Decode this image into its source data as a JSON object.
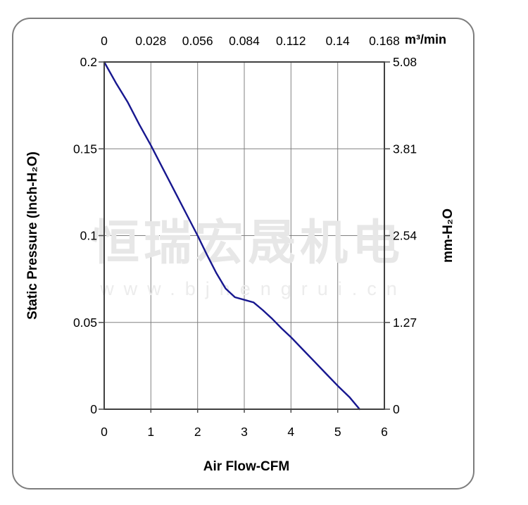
{
  "chart_data": {
    "type": "line",
    "title": "",
    "x_axis_bottom": {
      "label": "Air Flow-CFM",
      "ticks": [
        "0",
        "1",
        "2",
        "3",
        "4",
        "5",
        "6"
      ],
      "range": [
        0,
        6
      ]
    },
    "x_axis_top": {
      "unit": "m³/min",
      "ticks": [
        "0",
        "0.028",
        "0.056",
        "0.084",
        "0.112",
        "0.14",
        "0.168"
      ]
    },
    "y_axis_left": {
      "label": "Static Pressure (Inch-H₂O)",
      "ticks": [
        "0.2",
        "0.15",
        "0.1",
        "0.05",
        "0"
      ],
      "range": [
        0,
        0.2
      ]
    },
    "y_axis_right": {
      "label": "mm-H₂O",
      "ticks": [
        "5.08",
        "3.81",
        "2.54",
        "1.27",
        "0"
      ]
    },
    "grid": true,
    "legend": "none",
    "series": [
      {
        "name": "static-pressure-vs-airflow",
        "color": "#17178f",
        "points": [
          [
            0,
            0.2
          ],
          [
            0.25,
            0.188
          ],
          [
            0.5,
            0.177
          ],
          [
            0.75,
            0.164
          ],
          [
            1,
            0.152
          ],
          [
            1.25,
            0.139
          ],
          [
            1.5,
            0.126
          ],
          [
            1.75,
            0.113
          ],
          [
            2,
            0.1
          ],
          [
            2.2,
            0.089
          ],
          [
            2.4,
            0.0785
          ],
          [
            2.6,
            0.0695
          ],
          [
            2.8,
            0.0645
          ],
          [
            3,
            0.063
          ],
          [
            3.2,
            0.0615
          ],
          [
            3.4,
            0.057
          ],
          [
            3.6,
            0.052
          ],
          [
            3.8,
            0.0465
          ],
          [
            4,
            0.0415
          ],
          [
            4.25,
            0.0345
          ],
          [
            4.5,
            0.0275
          ],
          [
            4.75,
            0.0205
          ],
          [
            5,
            0.0135
          ],
          [
            5.25,
            0.007
          ],
          [
            5.47,
            0
          ]
        ]
      }
    ],
    "watermark": {
      "line1": "恒瑞宏晟机电",
      "line2": "www.bjhengrui.cn"
    }
  }
}
